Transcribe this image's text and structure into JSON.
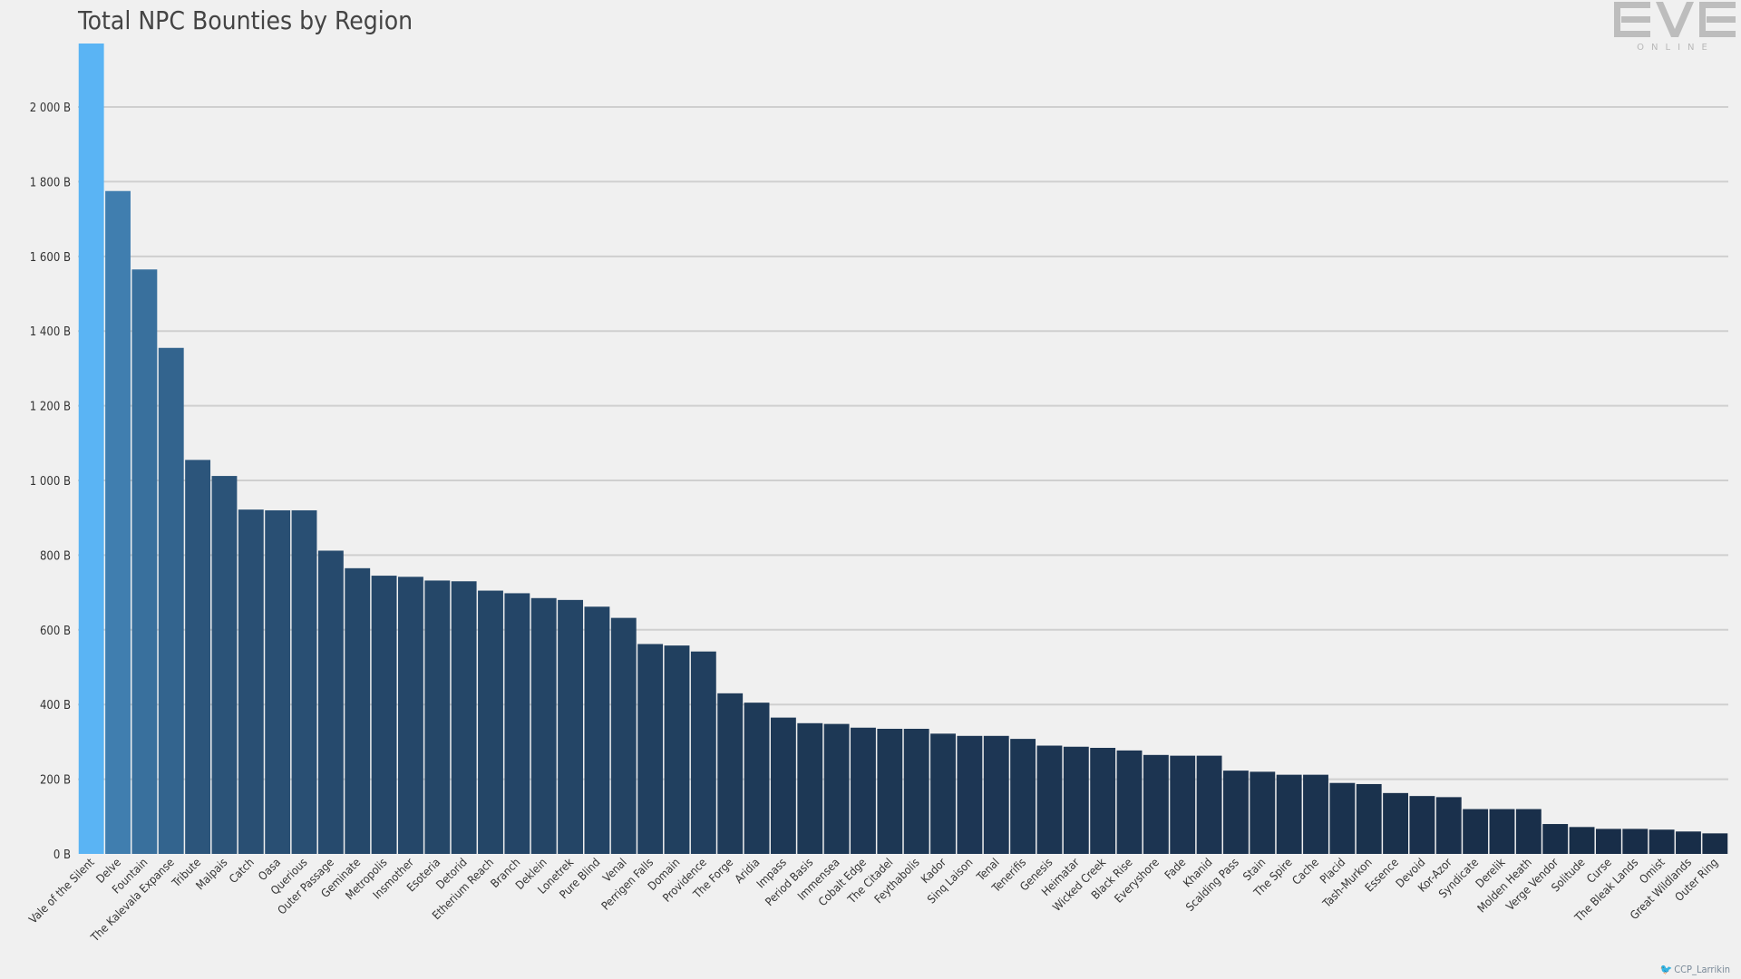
{
  "chart_data": {
    "type": "bar",
    "title": "Total NPC Bounties by Region",
    "xlabel": "",
    "ylabel": "",
    "ylim": [
      0,
      2170
    ],
    "yticks": [
      0,
      200,
      400,
      600,
      800,
      1000,
      1200,
      1400,
      1600,
      1800,
      2000
    ],
    "ytick_labels": [
      "0 B",
      "200 B",
      "400 B",
      "600 B",
      "800 B",
      "1 000 B",
      "1 200 B",
      "1 400 B",
      "1 600 B",
      "1 800 B",
      "2 000 B"
    ],
    "grid": true,
    "categories": [
      "Vale of the Silent",
      "Delve",
      "Fountain",
      "The Kalevala Expanse",
      "Tribute",
      "Malpais",
      "Catch",
      "Oasa",
      "Querious",
      "Outer Passage",
      "Geminate",
      "Metropolis",
      "Insmother",
      "Esoteria",
      "Detorid",
      "Etherium Reach",
      "Branch",
      "Deklein",
      "Lonetrek",
      "Pure Blind",
      "Venal",
      "Perrigen Falls",
      "Domain",
      "Providence",
      "The Forge",
      "Aridia",
      "Impass",
      "Period Basis",
      "Immensea",
      "Cobalt Edge",
      "The Citadel",
      "Feythabolis",
      "Kador",
      "Sinq Laison",
      "Tenal",
      "Tenerifis",
      "Genesis",
      "Heimatar",
      "Wicked Creek",
      "Black Rise",
      "Everyshore",
      "Fade",
      "Khanid",
      "Scalding Pass",
      "Stain",
      "The Spire",
      "Cache",
      "Placid",
      "Tash-Murkon",
      "Essence",
      "Devoid",
      "Kor-Azor",
      "Syndicate",
      "Derelik",
      "Molden Heath",
      "Verge Vendor",
      "Solitude",
      "Curse",
      "The Bleak Lands",
      "Omist",
      "Great Wildlands",
      "Outer Ring"
    ],
    "values": [
      2170,
      1775,
      1565,
      1355,
      1055,
      1012,
      922,
      920,
      920,
      812,
      765,
      745,
      742,
      732,
      730,
      705,
      698,
      685,
      680,
      662,
      632,
      562,
      558,
      542,
      430,
      405,
      365,
      350,
      348,
      338,
      335,
      335,
      322,
      316,
      316,
      308,
      290,
      287,
      284,
      277,
      265,
      263,
      263,
      223,
      220,
      212,
      212,
      190,
      187,
      163,
      155,
      152,
      120,
      120,
      120,
      80,
      72,
      67,
      67,
      65,
      60,
      55
    ],
    "color_start": "#5ab4f4",
    "color_end": "#172b45"
  },
  "logo": {
    "main": "EVE",
    "sub": "ONLINE"
  },
  "credit": {
    "handle": "CCP_Larrikin",
    "icon": "twitter-bird-icon"
  }
}
